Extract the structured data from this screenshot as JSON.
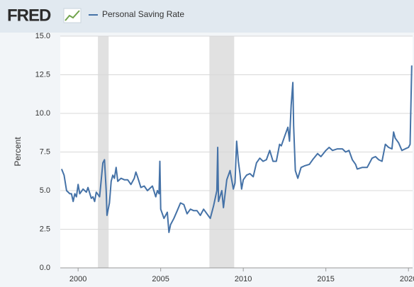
{
  "brand": "FRED",
  "chart_data": {
    "type": "line",
    "ylabel": "Percent",
    "series": [
      {
        "name": "Personal Saving Rate",
        "color": "#4572a7",
        "x": [
          1999.0,
          1999.15,
          1999.3,
          1999.5,
          1999.6,
          1999.7,
          1999.8,
          1999.9,
          2000.0,
          2000.1,
          2000.3,
          2000.5,
          2000.6,
          2000.8,
          2000.9,
          2001.0,
          2001.1,
          2001.3,
          2001.5,
          2001.6,
          2001.7,
          2001.75,
          2001.9,
          2002.0,
          2002.1,
          2002.2,
          2002.3,
          2002.4,
          2002.6,
          2002.8,
          2003.0,
          2003.2,
          2003.4,
          2003.5,
          2003.6,
          2003.8,
          2004.0,
          2004.2,
          2004.5,
          2004.7,
          2004.8,
          2004.9,
          2004.95,
          2005.0,
          2005.2,
          2005.4,
          2005.5,
          2005.6,
          2005.8,
          2006.0,
          2006.2,
          2006.4,
          2006.6,
          2006.8,
          2007.0,
          2007.2,
          2007.4,
          2007.6,
          2007.8,
          2008.0,
          2008.2,
          2008.4,
          2008.45,
          2008.5,
          2008.7,
          2008.8,
          2009.0,
          2009.2,
          2009.4,
          2009.5,
          2009.6,
          2009.7,
          2009.8,
          2009.9,
          2010.0,
          2010.2,
          2010.4,
          2010.6,
          2010.8,
          2011.0,
          2011.2,
          2011.4,
          2011.6,
          2011.8,
          2012.0,
          2012.2,
          2012.3,
          2012.5,
          2012.7,
          2012.8,
          2012.9,
          2013.0,
          2013.05,
          2013.15,
          2013.3,
          2013.5,
          2013.7,
          2014.0,
          2014.2,
          2014.5,
          2014.7,
          2015.0,
          2015.2,
          2015.4,
          2015.7,
          2016.0,
          2016.2,
          2016.4,
          2016.6,
          2016.8,
          2016.9,
          2017.2,
          2017.5,
          2017.8,
          2018.0,
          2018.2,
          2018.4,
          2018.6,
          2018.8,
          2019.0,
          2019.1,
          2019.2,
          2019.4,
          2019.6,
          2019.8,
          2020.0,
          2020.1,
          2020.2
        ],
        "values": [
          6.4,
          6.0,
          5.0,
          4.8,
          4.8,
          4.3,
          4.8,
          4.6,
          5.4,
          4.8,
          5.1,
          4.9,
          5.2,
          4.5,
          4.6,
          4.3,
          4.9,
          4.6,
          6.8,
          7.0,
          5.0,
          3.4,
          4.2,
          5.6,
          6.0,
          5.8,
          6.5,
          5.6,
          5.8,
          5.7,
          5.7,
          5.4,
          5.8,
          6.2,
          5.9,
          5.2,
          5.3,
          5.0,
          5.3,
          4.6,
          5.0,
          4.8,
          6.9,
          3.8,
          3.2,
          3.6,
          2.3,
          2.8,
          3.2,
          3.7,
          4.2,
          4.1,
          3.5,
          3.8,
          3.7,
          3.7,
          3.4,
          3.8,
          3.5,
          3.2,
          4.0,
          5.0,
          7.8,
          4.3,
          5.0,
          3.9,
          5.7,
          6.3,
          5.1,
          5.5,
          8.2,
          6.9,
          6.1,
          5.1,
          5.7,
          6.0,
          6.1,
          5.9,
          6.8,
          7.1,
          6.9,
          7.0,
          7.6,
          6.9,
          6.9,
          8.0,
          7.9,
          8.5,
          9.1,
          8.2,
          10.5,
          12.0,
          9.2,
          6.3,
          5.8,
          6.5,
          6.6,
          6.7,
          7.0,
          7.4,
          7.2,
          7.6,
          7.8,
          7.6,
          7.7,
          7.7,
          7.5,
          7.6,
          7.0,
          6.7,
          6.4,
          6.5,
          6.5,
          7.1,
          7.2,
          7.0,
          6.9,
          8.0,
          7.8,
          7.7,
          8.8,
          8.4,
          8.1,
          7.6,
          7.7,
          7.8,
          8.0,
          13.1
        ]
      }
    ],
    "recessions": [
      [
        2001.2,
        2001.85
      ],
      [
        2007.95,
        2009.45
      ]
    ],
    "xlim": [
      1998.92,
      2020.25
    ],
    "xticks": [
      2000,
      2005,
      2010,
      2015,
      2020
    ],
    "ylim": [
      0,
      15
    ],
    "yticks": [
      {
        "value": 0,
        "label": "0.0"
      },
      {
        "value": 2.5,
        "label": "2.5"
      },
      {
        "value": 5,
        "label": "5.0"
      },
      {
        "value": 7.5,
        "label": "7.5"
      },
      {
        "value": 10,
        "label": "10.0"
      },
      {
        "value": 12.5,
        "label": "12.5"
      },
      {
        "value": 15,
        "label": "15.0"
      }
    ],
    "grid": true
  }
}
